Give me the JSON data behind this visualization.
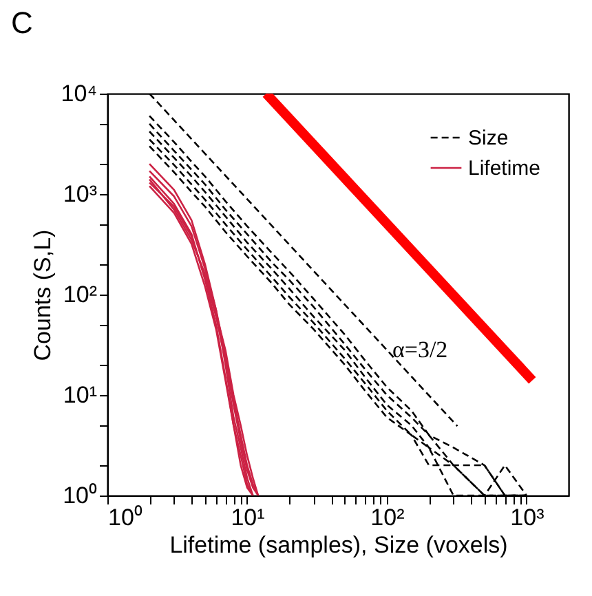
{
  "chart_data": {
    "type": "line",
    "title": "C",
    "xlabel": "Lifetime (samples), Size (voxels)",
    "ylabel": "Counts (S,L)",
    "log": "xy",
    "grid": false,
    "legend": "top right",
    "xlim": [
      1,
      2000
    ],
    "ylim": [
      1,
      10000
    ],
    "xticks": [
      {
        "value": 1,
        "label": "10⁰"
      },
      {
        "value": 2,
        "label": null
      },
      {
        "value": 3,
        "label": null
      },
      {
        "value": 4,
        "label": null
      },
      {
        "value": 5,
        "label": null
      },
      {
        "value": 6,
        "label": null
      },
      {
        "value": 7,
        "label": null
      },
      {
        "value": 8,
        "label": null
      },
      {
        "value": 9,
        "label": null
      },
      {
        "value": 10,
        "label": "10¹"
      },
      {
        "value": 20,
        "label": null
      },
      {
        "value": 30,
        "label": null
      },
      {
        "value": 40,
        "label": null
      },
      {
        "value": 50,
        "label": null
      },
      {
        "value": 60,
        "label": null
      },
      {
        "value": 70,
        "label": null
      },
      {
        "value": 80,
        "label": null
      },
      {
        "value": 90,
        "label": null
      },
      {
        "value": 100,
        "label": "10²"
      },
      {
        "value": 200,
        "label": null
      },
      {
        "value": 300,
        "label": null
      },
      {
        "value": 400,
        "label": null
      },
      {
        "value": 500,
        "label": null
      },
      {
        "value": 600,
        "label": null
      },
      {
        "value": 700,
        "label": null
      },
      {
        "value": 800,
        "label": null
      },
      {
        "value": 900,
        "label": null
      },
      {
        "value": 1000,
        "label": "10³"
      }
    ],
    "yticks": [
      {
        "value": 1,
        "label": "10⁰"
      },
      {
        "value": 2,
        "label": null
      },
      {
        "value": 5,
        "label": null
      },
      {
        "value": 10,
        "label": "10¹"
      },
      {
        "value": 20,
        "label": null
      },
      {
        "value": 50,
        "label": null
      },
      {
        "value": 100,
        "label": "10²"
      },
      {
        "value": 200,
        "label": null
      },
      {
        "value": 500,
        "label": null
      },
      {
        "value": 1000,
        "label": "10³"
      },
      {
        "value": 2000,
        "label": null
      },
      {
        "value": 5000,
        "label": null
      },
      {
        "value": 10000,
        "label": "10⁴"
      }
    ],
    "series": [
      {
        "name": "Size",
        "color": "#000000",
        "line_style": "dashed",
        "x": [
          2,
          3,
          4,
          5,
          7,
          10,
          15,
          20,
          30,
          50,
          70,
          100,
          150,
          200,
          300,
          500,
          700,
          1000
        ],
        "values": [
          6000,
          3300,
          2100,
          1500,
          850,
          480,
          260,
          170,
          90,
          40,
          22,
          12,
          7,
          4,
          3,
          2,
          1,
          1
        ]
      },
      {
        "color": "#000000",
        "line_style": "dashed",
        "x": [
          2,
          3,
          4,
          5,
          7,
          10,
          15,
          20,
          30,
          50,
          70,
          100,
          150,
          200,
          300,
          500,
          700,
          1000
        ],
        "values": [
          5000,
          2700,
          1750,
          1250,
          700,
          400,
          210,
          140,
          75,
          32,
          18,
          10,
          6,
          4,
          2,
          1,
          2,
          1
        ]
      },
      {
        "color": "#000000",
        "line_style": "dashed",
        "x": [
          2,
          3,
          4,
          5,
          7,
          10,
          15,
          20,
          30,
          50,
          70,
          100,
          150,
          200,
          300,
          500,
          700,
          1000
        ],
        "values": [
          4200,
          2300,
          1500,
          1050,
          600,
          330,
          180,
          115,
          60,
          28,
          15,
          8,
          5,
          3,
          2,
          2,
          1,
          1
        ]
      },
      {
        "color": "#000000",
        "line_style": "dashed",
        "x": [
          2,
          3,
          4,
          5,
          7,
          10,
          15,
          20,
          30,
          50,
          70,
          100,
          150,
          200,
          300,
          500,
          700,
          1000
        ],
        "values": [
          3500,
          1950,
          1250,
          880,
          500,
          280,
          150,
          95,
          52,
          23,
          13,
          7,
          4,
          3,
          1,
          1,
          1,
          1
        ]
      },
      {
        "color": "#000000",
        "line_style": "dashed",
        "x": [
          2,
          3,
          4,
          5,
          7,
          10,
          15,
          20,
          30,
          50,
          70,
          100,
          150,
          200,
          300,
          500,
          700,
          1000
        ],
        "values": [
          3000,
          1650,
          1050,
          750,
          420,
          240,
          130,
          80,
          45,
          20,
          11,
          6,
          4,
          2,
          2,
          1,
          1,
          1
        ]
      },
      {
        "name": "Lifetime",
        "color": "#cc2244",
        "line_style": "solid",
        "x": [
          2,
          3,
          4,
          5,
          6,
          7,
          8,
          9,
          10,
          11
        ],
        "values": [
          2000,
          1100,
          550,
          200,
          70,
          20,
          6,
          3,
          1.5,
          1
        ]
      },
      {
        "color": "#cc2244",
        "line_style": "solid",
        "x": [
          2,
          3,
          4,
          5,
          6,
          7,
          8,
          9,
          10,
          11,
          12
        ],
        "values": [
          1700,
          950,
          480,
          180,
          70,
          25,
          9,
          4,
          2,
          1.3,
          1
        ]
      },
      {
        "color": "#cc2244",
        "line_style": "solid",
        "x": [
          2,
          3,
          4,
          5,
          6,
          7,
          8,
          9,
          10,
          11
        ],
        "values": [
          1500,
          800,
          400,
          140,
          50,
          15,
          5,
          2.5,
          1.3,
          1
        ]
      },
      {
        "color": "#cc2244",
        "line_style": "solid",
        "x": [
          2,
          3,
          4,
          5,
          6,
          7,
          8,
          9,
          10,
          11,
          12
        ],
        "values": [
          1300,
          750,
          380,
          150,
          60,
          22,
          8,
          3.5,
          1.8,
          1.2,
          1
        ]
      },
      {
        "color": "#cc2244",
        "line_style": "solid",
        "x": [
          2,
          3,
          4,
          5,
          6,
          7,
          8,
          9,
          10,
          11
        ],
        "values": [
          1200,
          650,
          320,
          120,
          45,
          14,
          5,
          2,
          1.2,
          1
        ]
      },
      {
        "color": "#cc2244",
        "line_style": "solid",
        "x": [
          2,
          3,
          4,
          5,
          6,
          7,
          8,
          9,
          10,
          11,
          12
        ],
        "values": [
          1400,
          700,
          350,
          160,
          65,
          28,
          10,
          5,
          2.5,
          1.5,
          1
        ]
      },
      {
        "color": "#000000",
        "line_style": "dashed",
        "x": [
          2,
          320
        ],
        "values": [
          10000,
          4.9
        ]
      },
      {
        "color": "#ff0000",
        "line_style": "solid",
        "x": [
          13.7,
          1100
        ],
        "values": [
          10000,
          14
        ]
      }
    ],
    "annotations": [
      {
        "text": "α=3/2",
        "x": 100,
        "y": 28
      }
    ]
  }
}
